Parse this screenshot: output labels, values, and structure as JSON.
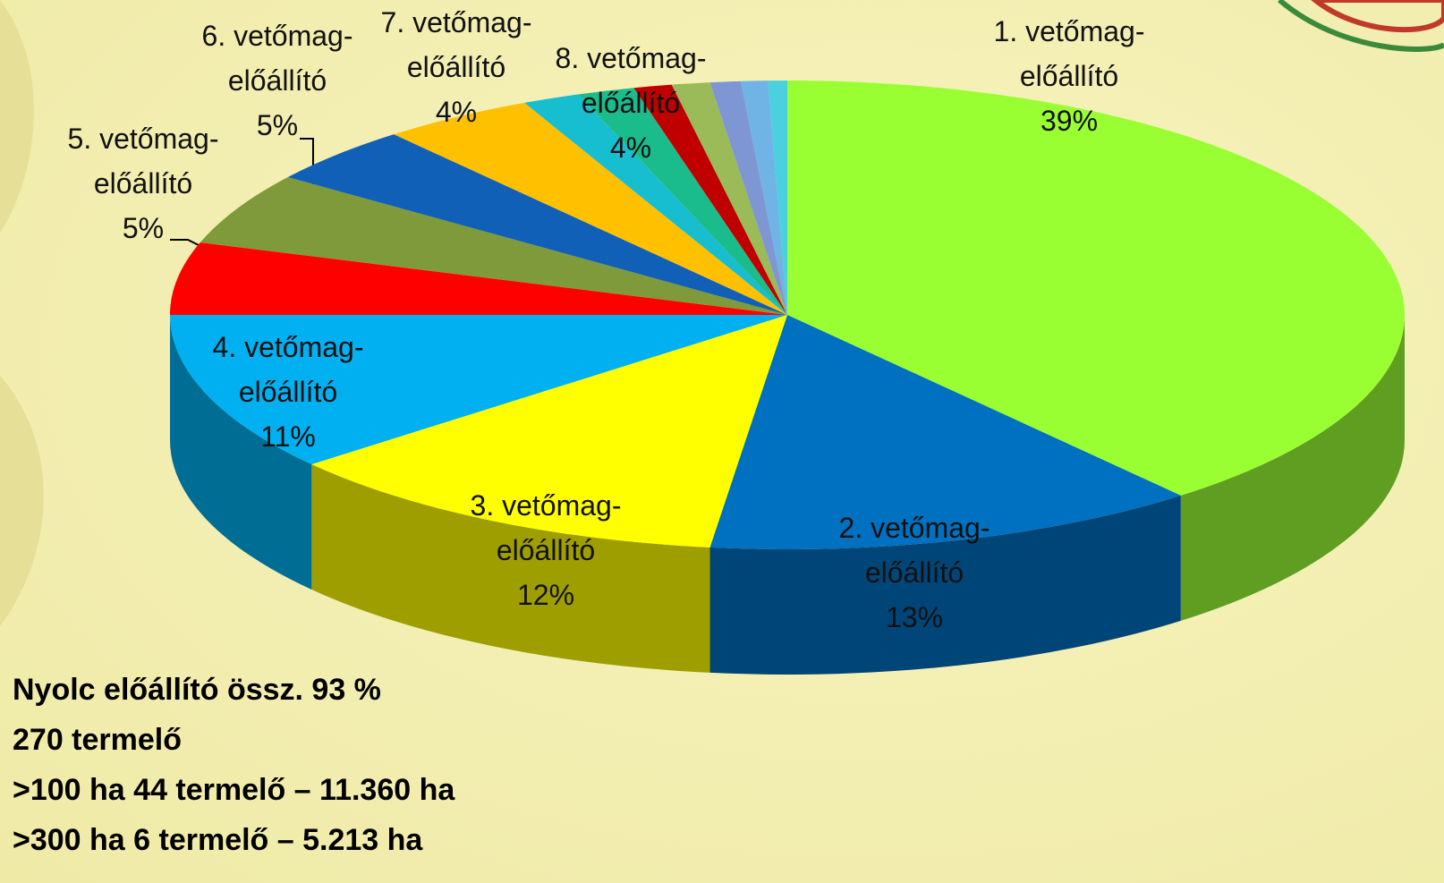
{
  "chart_data": {
    "type": "pie3d",
    "categories": [
      "1. vetőmag-előállító",
      "2. vetőmag-előállító",
      "3. vetőmag-előállító",
      "4. vetőmag-előállító",
      "5. vetőmag-előállító",
      "6. vetőmag-előállító",
      "7. vetőmag-előállító",
      "8. vetőmag-előállító",
      null,
      null,
      null,
      null,
      null,
      null,
      null
    ],
    "values": [
      39,
      13,
      12,
      11,
      5,
      5,
      4,
      4,
      1.5,
      1.5,
      1,
      1,
      0.8,
      0.7,
      0.5
    ],
    "value_labels": [
      "39%",
      "13%",
      "12%",
      "11%",
      "5%",
      "5%",
      "4%",
      "4%",
      null,
      null,
      null,
      null,
      null,
      null,
      null
    ],
    "colors": [
      "#99ff33",
      "#0070c0",
      "#ffff00",
      "#00b0f0",
      "#ff0000",
      "#7f9a3a",
      "#1060b8",
      "#ffc000",
      "#17becf",
      "#1abc8c",
      "#c00000",
      "#9bbb59",
      "#7f96d4",
      "#6fb4e4",
      "#4bd0e0"
    ],
    "annotations": [
      "Nyolc előállító össz. 93 %",
      "270 termelő",
      ">100 ha 44 termelő – 11.360 ha",
      ">300 ha 6 termelő – 5.213 ha"
    ]
  }
}
